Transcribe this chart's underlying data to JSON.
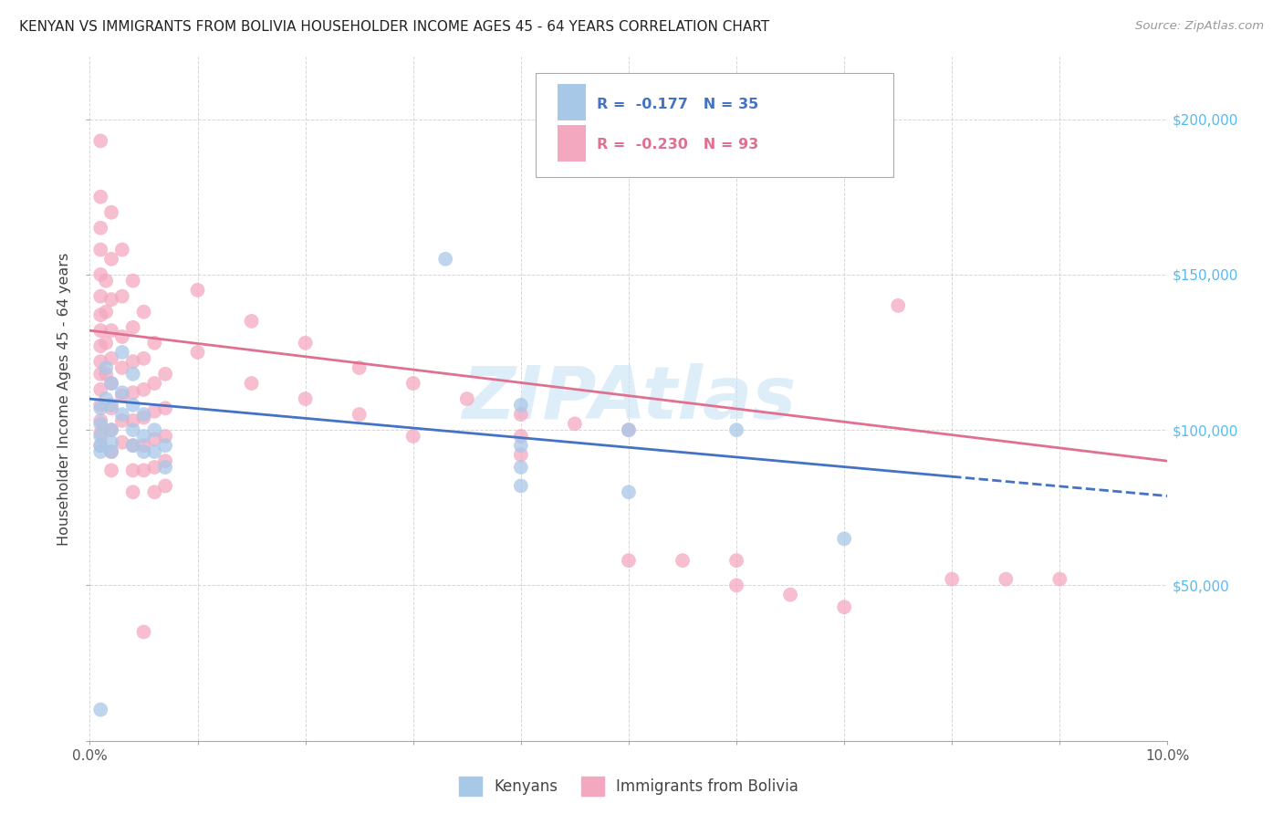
{
  "title": "KENYAN VS IMMIGRANTS FROM BOLIVIA HOUSEHOLDER INCOME AGES 45 - 64 YEARS CORRELATION CHART",
  "source": "Source: ZipAtlas.com",
  "ylabel": "Householder Income Ages 45 - 64 years",
  "xlim": [
    0.0,
    0.1
  ],
  "ylim": [
    0,
    220000
  ],
  "kenyan_color": "#a8c8e8",
  "bolivia_color": "#f4a8c0",
  "kenyan_line_color": "#4472c4",
  "bolivia_line_color": "#e07090",
  "kenyan_line_solid_end": 0.08,
  "kenyan_r": -0.177,
  "kenyan_n": 35,
  "bolivia_r": -0.23,
  "bolivia_n": 93,
  "kenyan_points": [
    [
      0.001,
      107000
    ],
    [
      0.001,
      102000
    ],
    [
      0.001,
      98000
    ],
    [
      0.001,
      95000
    ],
    [
      0.001,
      93000
    ],
    [
      0.0015,
      120000
    ],
    [
      0.0015,
      110000
    ],
    [
      0.002,
      115000
    ],
    [
      0.002,
      108000
    ],
    [
      0.002,
      100000
    ],
    [
      0.002,
      96000
    ],
    [
      0.002,
      93000
    ],
    [
      0.003,
      125000
    ],
    [
      0.003,
      112000
    ],
    [
      0.003,
      105000
    ],
    [
      0.004,
      118000
    ],
    [
      0.004,
      108000
    ],
    [
      0.004,
      100000
    ],
    [
      0.004,
      95000
    ],
    [
      0.005,
      105000
    ],
    [
      0.005,
      98000
    ],
    [
      0.005,
      93000
    ],
    [
      0.006,
      100000
    ],
    [
      0.006,
      93000
    ],
    [
      0.007,
      95000
    ],
    [
      0.007,
      88000
    ],
    [
      0.033,
      155000
    ],
    [
      0.04,
      108000
    ],
    [
      0.04,
      95000
    ],
    [
      0.04,
      88000
    ],
    [
      0.04,
      82000
    ],
    [
      0.05,
      100000
    ],
    [
      0.05,
      80000
    ],
    [
      0.06,
      100000
    ],
    [
      0.07,
      65000
    ],
    [
      0.001,
      10000
    ]
  ],
  "bolivia_points": [
    [
      0.001,
      193000
    ],
    [
      0.001,
      175000
    ],
    [
      0.001,
      165000
    ],
    [
      0.001,
      158000
    ],
    [
      0.001,
      150000
    ],
    [
      0.001,
      143000
    ],
    [
      0.001,
      137000
    ],
    [
      0.001,
      132000
    ],
    [
      0.001,
      127000
    ],
    [
      0.001,
      122000
    ],
    [
      0.001,
      118000
    ],
    [
      0.001,
      113000
    ],
    [
      0.001,
      108000
    ],
    [
      0.001,
      103000
    ],
    [
      0.001,
      99000
    ],
    [
      0.001,
      95000
    ],
    [
      0.0015,
      148000
    ],
    [
      0.0015,
      138000
    ],
    [
      0.0015,
      128000
    ],
    [
      0.0015,
      118000
    ],
    [
      0.002,
      170000
    ],
    [
      0.002,
      155000
    ],
    [
      0.002,
      142000
    ],
    [
      0.002,
      132000
    ],
    [
      0.002,
      123000
    ],
    [
      0.002,
      115000
    ],
    [
      0.002,
      107000
    ],
    [
      0.002,
      100000
    ],
    [
      0.002,
      93000
    ],
    [
      0.002,
      87000
    ],
    [
      0.003,
      158000
    ],
    [
      0.003,
      143000
    ],
    [
      0.003,
      130000
    ],
    [
      0.003,
      120000
    ],
    [
      0.003,
      111000
    ],
    [
      0.003,
      103000
    ],
    [
      0.003,
      96000
    ],
    [
      0.004,
      148000
    ],
    [
      0.004,
      133000
    ],
    [
      0.004,
      122000
    ],
    [
      0.004,
      112000
    ],
    [
      0.004,
      103000
    ],
    [
      0.004,
      95000
    ],
    [
      0.004,
      87000
    ],
    [
      0.004,
      80000
    ],
    [
      0.005,
      138000
    ],
    [
      0.005,
      123000
    ],
    [
      0.005,
      113000
    ],
    [
      0.005,
      104000
    ],
    [
      0.005,
      95000
    ],
    [
      0.005,
      87000
    ],
    [
      0.006,
      128000
    ],
    [
      0.006,
      115000
    ],
    [
      0.006,
      106000
    ],
    [
      0.006,
      97000
    ],
    [
      0.006,
      88000
    ],
    [
      0.006,
      80000
    ],
    [
      0.007,
      118000
    ],
    [
      0.007,
      107000
    ],
    [
      0.007,
      98000
    ],
    [
      0.007,
      90000
    ],
    [
      0.007,
      82000
    ],
    [
      0.01,
      145000
    ],
    [
      0.01,
      125000
    ],
    [
      0.015,
      135000
    ],
    [
      0.015,
      115000
    ],
    [
      0.02,
      128000
    ],
    [
      0.02,
      110000
    ],
    [
      0.025,
      120000
    ],
    [
      0.025,
      105000
    ],
    [
      0.03,
      115000
    ],
    [
      0.03,
      98000
    ],
    [
      0.035,
      110000
    ],
    [
      0.04,
      105000
    ],
    [
      0.04,
      98000
    ],
    [
      0.04,
      92000
    ],
    [
      0.045,
      102000
    ],
    [
      0.05,
      100000
    ],
    [
      0.05,
      58000
    ],
    [
      0.055,
      58000
    ],
    [
      0.06,
      58000
    ],
    [
      0.06,
      50000
    ],
    [
      0.065,
      47000
    ],
    [
      0.07,
      43000
    ],
    [
      0.075,
      140000
    ],
    [
      0.08,
      52000
    ],
    [
      0.085,
      52000
    ],
    [
      0.09,
      52000
    ],
    [
      0.005,
      35000
    ]
  ]
}
